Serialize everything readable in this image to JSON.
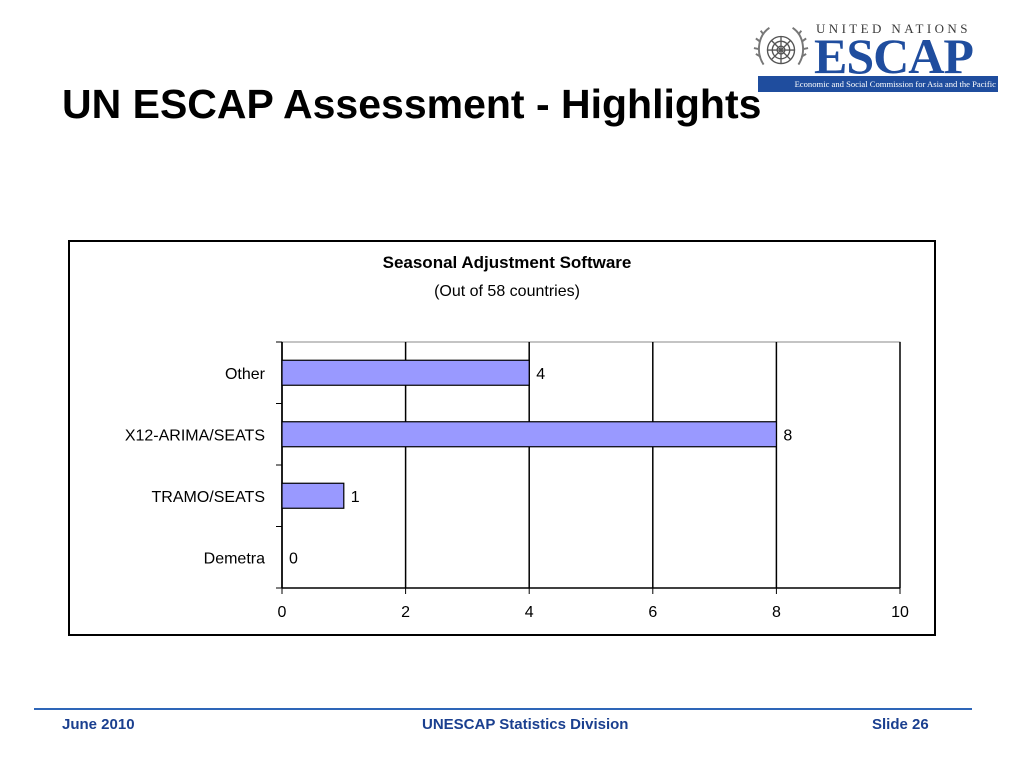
{
  "slide": {
    "title": "UN ESCAP Assessment - Highlights"
  },
  "logo": {
    "org_top": "UNITED NATIONS",
    "org_name": "ESCAP",
    "org_subtitle": "Economic and Social Commission for Asia and the Pacific",
    "emblem_icon": "un-emblem-icon",
    "brand_color": "#1f4d9e"
  },
  "chart_data": {
    "type": "bar",
    "orientation": "horizontal",
    "title": "Seasonal Adjustment Software",
    "subtitle": "(Out of 58 countries)",
    "categories": [
      "Other",
      "X12-ARIMA/SEATS",
      "TRAMO/SEATS",
      "Demetra"
    ],
    "values": [
      4,
      8,
      1,
      0
    ],
    "xlim": [
      0,
      10
    ],
    "xticks": [
      0,
      2,
      4,
      6,
      8,
      10
    ],
    "grid": true,
    "legend": "none",
    "bar_color": "#9999ff"
  },
  "footer": {
    "date": "June 2010",
    "division": "UNESCAP Statistics Division",
    "slide_number": "Slide 26",
    "accent_color": "#2e66b8"
  }
}
